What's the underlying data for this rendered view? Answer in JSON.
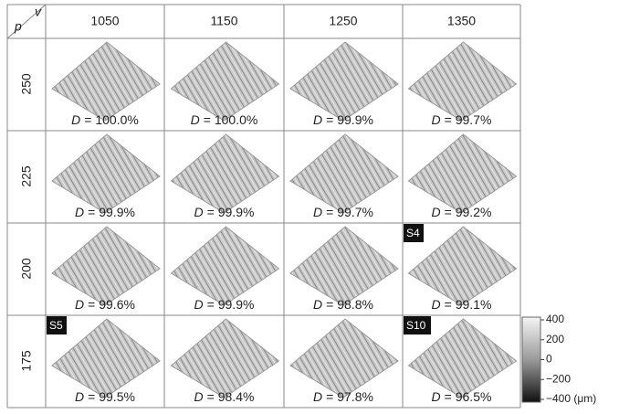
{
  "corner": {
    "row_var": "p",
    "col_var": "v"
  },
  "symbol": "D",
  "columns": [
    "1050",
    "1150",
    "1250",
    "1350"
  ],
  "rows": [
    {
      "label": "250",
      "cells": [
        {
          "value": "= 100.0%"
        },
        {
          "value": "= 100.0%"
        },
        {
          "value": "= 99.9%"
        },
        {
          "value": "= 99.7%"
        }
      ]
    },
    {
      "label": "225",
      "cells": [
        {
          "value": "= 99.9%"
        },
        {
          "value": "= 99.9%"
        },
        {
          "value": "= 99.7%"
        },
        {
          "value": "= 99.2%"
        }
      ]
    },
    {
      "label": "200",
      "cells": [
        {
          "value": "= 99.6%"
        },
        {
          "value": "= 99.9%"
        },
        {
          "value": "= 98.8%"
        },
        {
          "value": "= 99.1%",
          "badge": "S4"
        }
      ]
    },
    {
      "label": "175",
      "cells": [
        {
          "value": "= 99.5%",
          "badge": "S5"
        },
        {
          "value": "= 98.4%"
        },
        {
          "value": "= 97.8%"
        },
        {
          "value": "= 96.5%",
          "badge": "S10"
        }
      ]
    }
  ],
  "colorbar": {
    "labels": [
      "400",
      "200",
      "0",
      "−200",
      "−400 (μm)"
    ]
  }
}
